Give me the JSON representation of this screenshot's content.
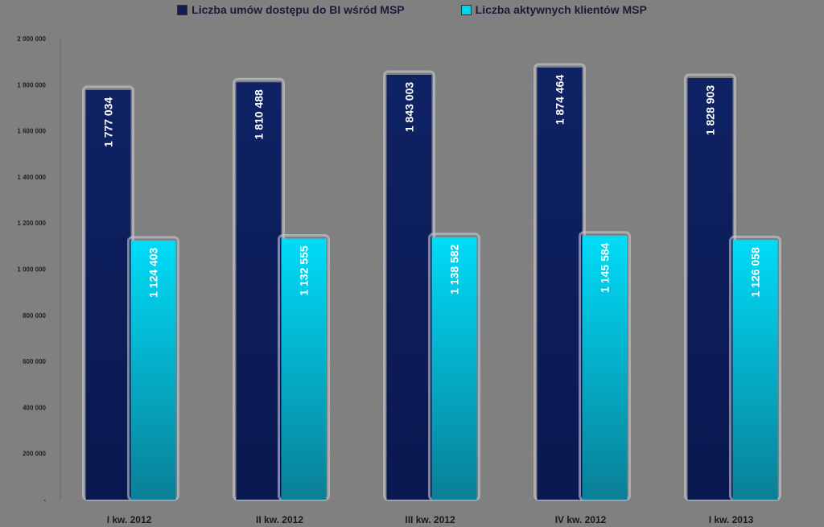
{
  "chart_data": {
    "type": "bar",
    "categories": [
      "I kw. 2012",
      "II kw. 2012",
      "III kw. 2012",
      "IV kw. 2012",
      "I kw. 2013"
    ],
    "series": [
      {
        "name": "Liczba umów dostępu do BI wśród MSP",
        "values": [
          1777034,
          1810488,
          1843003,
          1874464,
          1828903
        ],
        "color": "#0d1e5c"
      },
      {
        "name": "Liczba aktywnych klientów MSP",
        "values": [
          1124403,
          1132555,
          1138582,
          1145584,
          1126058
        ],
        "color": "#00d4f0"
      }
    ],
    "value_labels": [
      [
        "1 777 034",
        "1 810 488",
        "1 843 003",
        "1 874 464",
        "1 828 903"
      ],
      [
        "1 124 403",
        "1 132 555",
        "1 138 582",
        "1 145 584",
        "1 126 058"
      ]
    ],
    "y_ticks": [
      0,
      200000,
      400000,
      600000,
      800000,
      1000000,
      1200000,
      1400000,
      1600000,
      1800000,
      2000000
    ],
    "y_tick_labels": [
      "-",
      "200 000",
      "400 000",
      "600 000",
      "800 000",
      "1 000 000",
      "1 200 000",
      "1 400 000",
      "1 600 000",
      "1 800 000",
      "2 000 000"
    ],
    "ylim": [
      0,
      2000000
    ],
    "title": "",
    "xlabel": "",
    "ylabel": "",
    "legend_position": "top",
    "grid": true
  }
}
